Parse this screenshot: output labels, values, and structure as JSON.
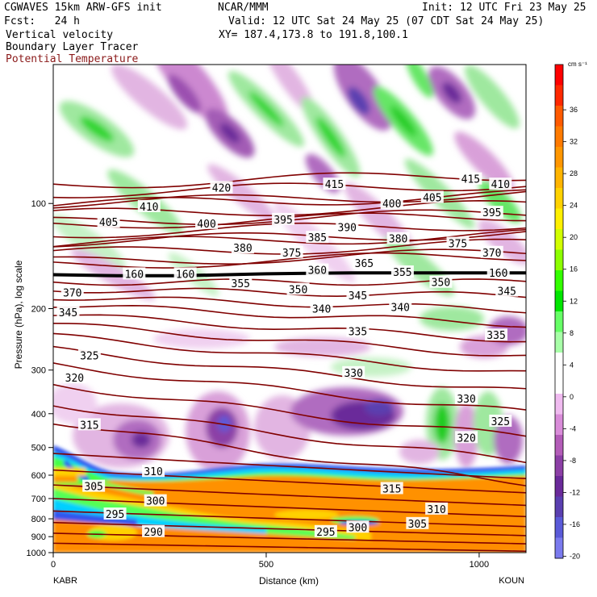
{
  "header": {
    "model": "CGWAVES 15km ARW-GFS init",
    "org": "NCAR/MMM",
    "init": "Init: 12 UTC Fri 23 May 25",
    "fcst": "Fcst:   24 h",
    "valid": "Valid: 12 UTC Sat 24 May 25 (07 CDT Sat 24 May 25)",
    "field1": "Vertical velocity",
    "field2": "Boundary Layer Tracer",
    "field3": "Potential Temperature",
    "xy": "XY= 187.4,173.8 to 191.8,100.1"
  },
  "colors": {
    "theta": "#800000",
    "tropopause": "#000000",
    "field3_label": "#8b1a1a"
  },
  "colorbar": {
    "unit": "cm s⁻¹",
    "ticks": [
      "36",
      "32",
      "28",
      "24",
      "20",
      "16",
      "12",
      "8",
      "4",
      "0",
      "-4",
      "-8",
      "-12",
      "-16",
      "-20"
    ],
    "colors": [
      "#ff0000",
      "#ff2800",
      "#ff5a00",
      "#ff7a00",
      "#ff9600",
      "#ffb400",
      "#ffd200",
      "#fff000",
      "#d2ff00",
      "#8cff00",
      "#33ff00",
      "#00e600",
      "#66ff66",
      "#a8ffa8",
      "#ffffff",
      "#ffffff",
      "#f0bbf0",
      "#d98cd9",
      "#b35cb8",
      "#8c3fa6",
      "#6a2a9a",
      "#5a3fb0",
      "#5a5ad8",
      "#7a7aee"
    ]
  },
  "chart_data": {
    "type": "heatmap",
    "title": "Vertical velocity / Boundary Layer Tracer / Potential Temperature",
    "xlabel": "Distance (km)",
    "ylabel": "Pressure (hPa), log scale",
    "xlim": [
      0,
      1110
    ],
    "ylim": [
      1000,
      40
    ],
    "x_ticks": [
      "0",
      "500",
      "1000"
    ],
    "x_endpoints": [
      "KABR",
      "KOUN"
    ],
    "y_ticks": [
      {
        "p": 100,
        "label": "100"
      },
      {
        "p": 200,
        "label": "200"
      },
      {
        "p": 300,
        "label": "300"
      },
      {
        "p": 400,
        "label": "400"
      },
      {
        "p": 500,
        "label": "500"
      },
      {
        "p": 600,
        "label": "600"
      },
      {
        "p": 700,
        "label": "700"
      },
      {
        "p": 800,
        "label": "800"
      },
      {
        "p": 900,
        "label": "900"
      },
      {
        "p": 1000,
        "label": "1000"
      }
    ],
    "theta_labels": [
      {
        "v": "420",
        "x": 395,
        "p": 90
      },
      {
        "v": "415",
        "x": 660,
        "p": 88
      },
      {
        "v": "415",
        "x": 980,
        "p": 85
      },
      {
        "v": "410",
        "x": 225,
        "p": 102
      },
      {
        "v": "410",
        "x": 1050,
        "p": 88
      },
      {
        "v": "405",
        "x": 130,
        "p": 113
      },
      {
        "v": "405",
        "x": 890,
        "p": 96
      },
      {
        "v": "400",
        "x": 360,
        "p": 114
      },
      {
        "v": "400",
        "x": 795,
        "p": 100
      },
      {
        "v": "395",
        "x": 540,
        "p": 111
      },
      {
        "v": "395",
        "x": 1030,
        "p": 106
      },
      {
        "v": "390",
        "x": 690,
        "p": 117
      },
      {
        "v": "385",
        "x": 620,
        "p": 125
      },
      {
        "v": "380",
        "x": 445,
        "p": 134
      },
      {
        "v": "380",
        "x": 810,
        "p": 126
      },
      {
        "v": "375",
        "x": 560,
        "p": 138
      },
      {
        "v": "375",
        "x": 950,
        "p": 130
      },
      {
        "v": "370",
        "x": 1030,
        "p": 138
      },
      {
        "v": "370",
        "x": 45,
        "p": 180
      },
      {
        "v": "365",
        "x": 730,
        "p": 148
      },
      {
        "v": "360",
        "x": 620,
        "p": 155
      },
      {
        "v": "355",
        "x": 440,
        "p": 169
      },
      {
        "v": "355",
        "x": 820,
        "p": 157
      },
      {
        "v": "350",
        "x": 575,
        "p": 176
      },
      {
        "v": "350",
        "x": 910,
        "p": 168
      },
      {
        "v": "345",
        "x": 35,
        "p": 205
      },
      {
        "v": "345",
        "x": 715,
        "p": 183
      },
      {
        "v": "345",
        "x": 1065,
        "p": 178
      },
      {
        "v": "340",
        "x": 630,
        "p": 200
      },
      {
        "v": "340",
        "x": 815,
        "p": 198
      },
      {
        "v": "335",
        "x": 715,
        "p": 232
      },
      {
        "v": "335",
        "x": 1040,
        "p": 238
      },
      {
        "v": "330",
        "x": 705,
        "p": 305
      },
      {
        "v": "330",
        "x": 970,
        "p": 362
      },
      {
        "v": "325",
        "x": 85,
        "p": 272
      },
      {
        "v": "325",
        "x": 1050,
        "p": 420
      },
      {
        "v": "320",
        "x": 50,
        "p": 315
      },
      {
        "v": "320",
        "x": 970,
        "p": 468
      },
      {
        "v": "315",
        "x": 85,
        "p": 430
      },
      {
        "v": "315",
        "x": 795,
        "p": 655
      },
      {
        "v": "310",
        "x": 235,
        "p": 585
      },
      {
        "v": "310",
        "x": 900,
        "p": 750
      },
      {
        "v": "305",
        "x": 95,
        "p": 645
      },
      {
        "v": "305",
        "x": 855,
        "p": 825
      },
      {
        "v": "300",
        "x": 240,
        "p": 710
      },
      {
        "v": "300",
        "x": 715,
        "p": 845
      },
      {
        "v": "295",
        "x": 145,
        "p": 775
      },
      {
        "v": "295",
        "x": 640,
        "p": 870
      },
      {
        "v": "290",
        "x": 235,
        "p": 870
      }
    ],
    "tropopause": [
      {
        "x": 0,
        "p": 160
      },
      {
        "x": 150,
        "p": 161
      },
      {
        "x": 300,
        "p": 161
      },
      {
        "x": 500,
        "p": 159
      },
      {
        "x": 700,
        "p": 158
      },
      {
        "x": 900,
        "p": 158
      },
      {
        "x": 1110,
        "p": 158
      }
    ],
    "tropopause_labels": [
      {
        "v": "160",
        "x": 190,
        "p": 159
      },
      {
        "v": "160",
        "x": 310,
        "p": 159
      },
      {
        "v": "160",
        "x": 1045,
        "p": 158
      }
    ]
  }
}
